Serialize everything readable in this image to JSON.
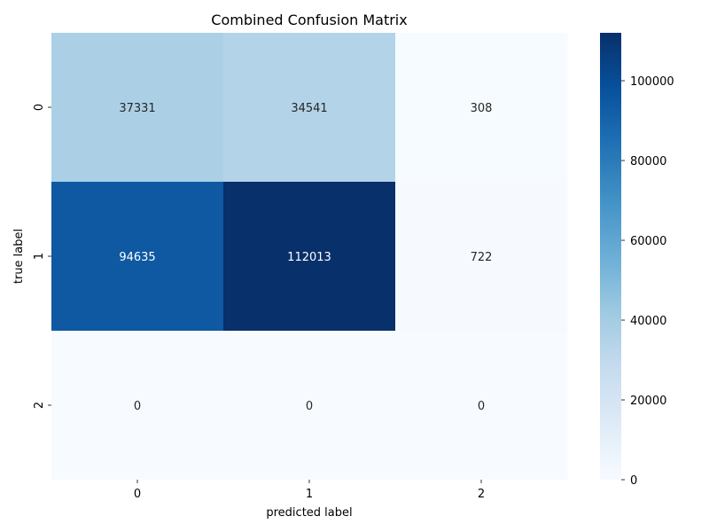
{
  "chart_data": {
    "type": "heatmap",
    "title": "Combined Confusion Matrix",
    "xlabel": "predicted label",
    "ylabel": "true label",
    "x_categories": [
      "0",
      "1",
      "2"
    ],
    "y_categories": [
      "0",
      "1",
      "2"
    ],
    "matrix": [
      [
        37331,
        34541,
        308
      ],
      [
        94635,
        112013,
        722
      ],
      [
        0,
        0,
        0
      ]
    ],
    "colormap": "Blues",
    "color_low": "#f7fbff",
    "color_high": "#08306b",
    "colorbar": {
      "min": 0,
      "max": 112013,
      "ticks": [
        0,
        20000,
        40000,
        60000,
        80000,
        100000
      ]
    },
    "grid": false,
    "legend": "colorbar-right"
  }
}
